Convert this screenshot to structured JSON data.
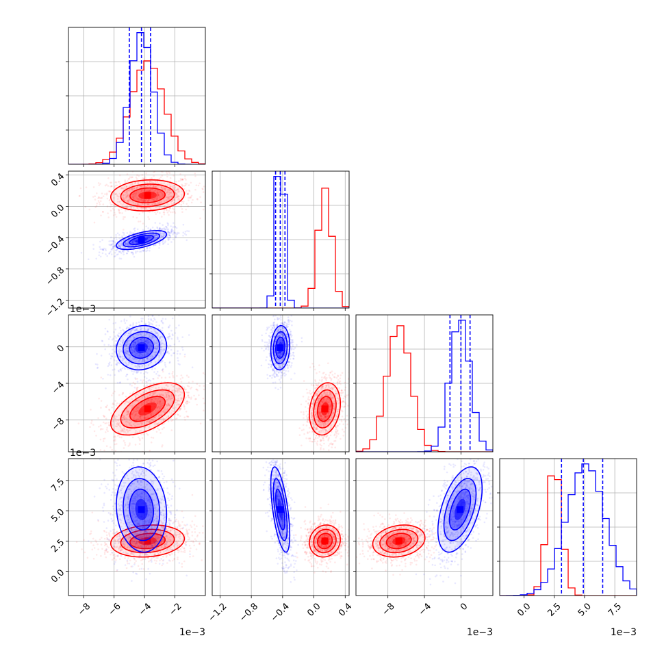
{
  "chart_data": {
    "type": "corner",
    "title": "",
    "n_params": 4,
    "colors": {
      "series_a": "#0000ff",
      "series_b": "#ff0000"
    },
    "params": [
      {
        "range": [
          -0.009,
          -0.0
        ],
        "ticks": [
          -0.008,
          -0.006,
          -0.004,
          -0.002
        ],
        "tick_labels": [
          "−8",
          "−6",
          "−4",
          "−2"
        ],
        "offset_label": "1e−3",
        "series_a": {
          "center": -0.0042,
          "std": 0.00075,
          "quantiles": [
            -0.005,
            -0.0042,
            -0.0036
          ]
        },
        "series_b": {
          "center": -0.0038,
          "std": 0.0011
        }
      },
      {
        "range": [
          -1.3,
          0.45
        ],
        "ticks": [
          -1.2,
          -0.8,
          -0.4,
          0.0,
          0.4
        ],
        "tick_labels": [
          "−1.2",
          "−0.8",
          "−0.4",
          "0.0",
          "0.4"
        ],
        "offset_label": "",
        "series_a": {
          "center": -0.43,
          "std": 0.055,
          "quantiles": [
            -0.49,
            -0.43,
            -0.37
          ]
        },
        "series_b": {
          "center": 0.14,
          "std": 0.09
        }
      },
      {
        "range": [
          -0.0115,
          0.0035
        ],
        "ticks": [
          -0.008,
          -0.004,
          0.0
        ],
        "tick_labels": [
          "−8",
          "−4",
          "0"
        ],
        "offset_label": "1e−3",
        "series_a": {
          "center": -0.0001,
          "std": 0.0011,
          "quantiles": [
            -0.0012,
            0.0,
            0.001
          ]
        },
        "series_b": {
          "center": -0.0068,
          "std": 0.0013
        }
      },
      {
        "range": [
          -0.002,
          0.0093
        ],
        "ticks": [
          0.0,
          0.0025,
          0.005,
          0.0075
        ],
        "tick_labels": [
          "0.0",
          "2.5",
          "5.0",
          "7.5"
        ],
        "offset_label": "1e−3",
        "series_a": {
          "center": 0.0051,
          "std": 0.0016,
          "quantiles": [
            0.0031,
            0.0049,
            0.0065
          ]
        },
        "series_b": {
          "center": 0.0025,
          "std": 0.0006
        }
      }
    ],
    "correlations": {
      "series_a": {
        "1-0": 0.6,
        "2-0": 0.1,
        "2-1": 0.1,
        "3-0": -0.1,
        "3-1": -0.6,
        "3-2": 0.5
      },
      "series_b": {
        "1-0": 0.1,
        "2-0": 0.55,
        "2-1": 0.2,
        "3-0": 0.15,
        "3-1": 0.1,
        "3-2": 0.2
      }
    },
    "grid": true,
    "legend": "none"
  }
}
